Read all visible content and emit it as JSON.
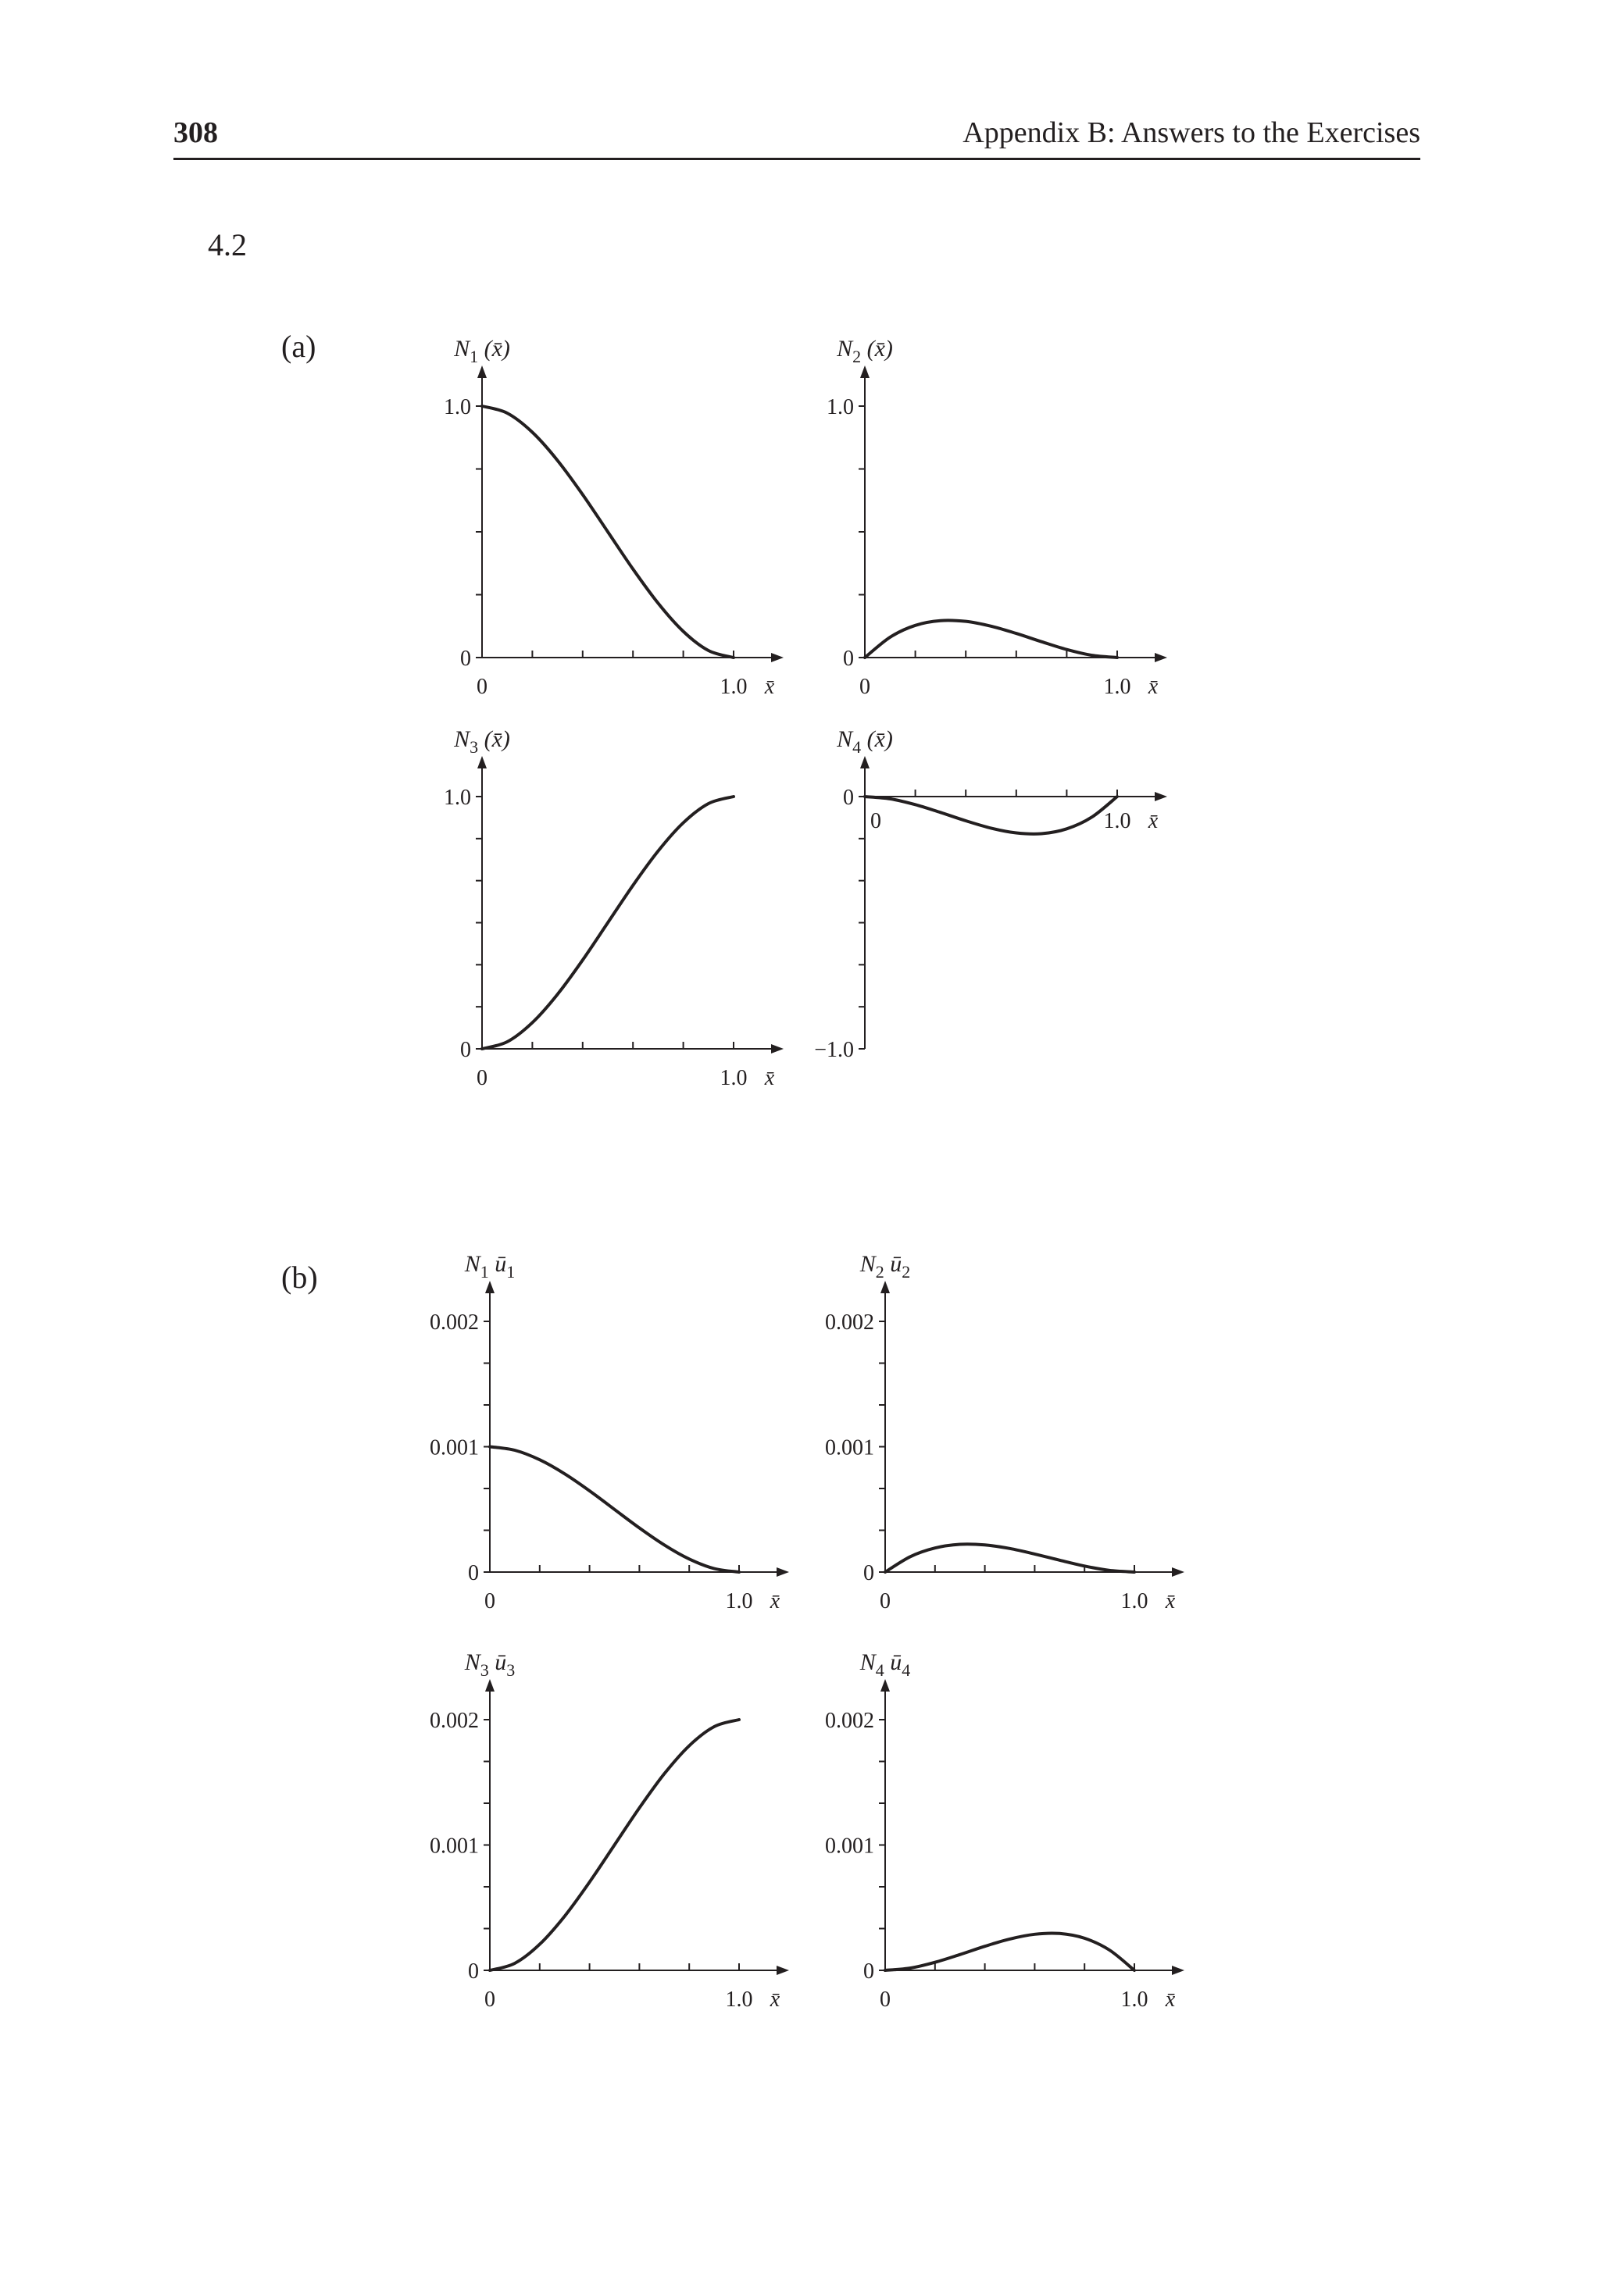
{
  "header": {
    "page_number": "308",
    "running_head": "Appendix B: Answers to the Exercises"
  },
  "exercise_number": "4.2",
  "parts": [
    {
      "label": "(a)"
    },
    {
      "label": "(b)"
    }
  ],
  "chart_data": [
    {
      "type": "line",
      "part": "(a)",
      "ylabel": "N1 (x̄)",
      "ylabel_main": "N",
      "ylabel_sub": "1",
      "ylabel_rest": " (x̄)",
      "xlabel": "x̄",
      "xlim": [
        0,
        1.0
      ],
      "ylim": [
        0,
        1.0
      ],
      "x_tick_labels": [
        "0",
        "1.0"
      ],
      "y_tick_labels": [
        "0",
        "1.0"
      ],
      "x": [
        0,
        0.1,
        0.2,
        0.3,
        0.4,
        0.5,
        0.6,
        0.7,
        0.8,
        0.9,
        1.0
      ],
      "y": [
        1.0,
        0.972,
        0.896,
        0.784,
        0.648,
        0.5,
        0.352,
        0.216,
        0.104,
        0.028,
        0.0
      ]
    },
    {
      "type": "line",
      "part": "(a)",
      "ylabel": "N2 (x̄)",
      "ylabel_main": "N",
      "ylabel_sub": "2",
      "ylabel_rest": " (x̄)",
      "xlabel": "x̄",
      "xlim": [
        0,
        1.0
      ],
      "ylim": [
        0,
        1.0
      ],
      "x_tick_labels": [
        "0",
        "1.0"
      ],
      "y_tick_labels": [
        "0",
        "1.0"
      ],
      "x": [
        0,
        0.1,
        0.2,
        0.3,
        0.4,
        0.5,
        0.6,
        0.7,
        0.8,
        0.9,
        1.0
      ],
      "y": [
        0.0,
        0.081,
        0.128,
        0.147,
        0.144,
        0.125,
        0.096,
        0.063,
        0.032,
        0.009,
        0.0
      ]
    },
    {
      "type": "line",
      "part": "(a)",
      "ylabel": "N3 (x̄)",
      "ylabel_main": "N",
      "ylabel_sub": "3",
      "ylabel_rest": " (x̄)",
      "xlabel": "x̄",
      "xlim": [
        0,
        1.0
      ],
      "ylim": [
        0,
        1.0
      ],
      "x_tick_labels": [
        "0",
        "1.0"
      ],
      "y_tick_labels": [
        "0",
        "1.0"
      ],
      "x": [
        0,
        0.1,
        0.2,
        0.3,
        0.4,
        0.5,
        0.6,
        0.7,
        0.8,
        0.9,
        1.0
      ],
      "y": [
        0.0,
        0.028,
        0.104,
        0.216,
        0.352,
        0.5,
        0.648,
        0.784,
        0.896,
        0.972,
        1.0
      ]
    },
    {
      "type": "line",
      "part": "(a)",
      "ylabel": "N4 (x̄)",
      "ylabel_main": "N",
      "ylabel_sub": "4",
      "ylabel_rest": " (x̄)",
      "xlabel": "x̄",
      "xlim": [
        0,
        1.0
      ],
      "ylim": [
        -1.0,
        0
      ],
      "x_tick_labels": [
        "0",
        "1.0"
      ],
      "y_tick_labels": [
        "−1.0",
        "0"
      ],
      "x": [
        0,
        0.1,
        0.2,
        0.3,
        0.4,
        0.5,
        0.6,
        0.7,
        0.8,
        0.9,
        1.0
      ],
      "y": [
        0.0,
        -0.009,
        -0.032,
        -0.063,
        -0.096,
        -0.125,
        -0.144,
        -0.147,
        -0.128,
        -0.081,
        0.0
      ]
    },
    {
      "type": "line",
      "part": "(b)",
      "ylabel": "N1 ū1",
      "ylabel_main": "N",
      "ylabel_sub": "1",
      "ylabel_rest": " ū",
      "ylabel_sub2": "1",
      "xlabel": "x̄",
      "xlim": [
        0,
        1.0
      ],
      "ylim": [
        0,
        0.002
      ],
      "x_tick_labels": [
        "0",
        "1.0"
      ],
      "y_tick_labels": [
        "0",
        "0.001",
        "0.002"
      ],
      "x": [
        0,
        0.1,
        0.2,
        0.3,
        0.4,
        0.5,
        0.6,
        0.7,
        0.8,
        0.9,
        1.0
      ],
      "y": [
        0.001,
        0.000972,
        0.000896,
        0.000784,
        0.000648,
        0.0005,
        0.000352,
        0.000216,
        0.000104,
        2.8e-05,
        0.0
      ]
    },
    {
      "type": "line",
      "part": "(b)",
      "ylabel": "N2 ū2",
      "ylabel_main": "N",
      "ylabel_sub": "2",
      "ylabel_rest": " ū",
      "ylabel_sub2": "2",
      "xlabel": "x̄",
      "xlim": [
        0,
        1.0
      ],
      "ylim": [
        0,
        0.002
      ],
      "x_tick_labels": [
        "0",
        "1.0"
      ],
      "y_tick_labels": [
        "0",
        "0.001",
        "0.002"
      ],
      "x": [
        0,
        0.1,
        0.2,
        0.3,
        0.4,
        0.5,
        0.6,
        0.7,
        0.8,
        0.9,
        1.0
      ],
      "y": [
        0.0,
        0.000122,
        0.000192,
        0.000221,
        0.000216,
        0.000188,
        0.000144,
        9.5e-05,
        4.8e-05,
        1.4e-05,
        0.0
      ]
    },
    {
      "type": "line",
      "part": "(b)",
      "ylabel": "N3 ū3",
      "ylabel_main": "N",
      "ylabel_sub": "3",
      "ylabel_rest": " ū",
      "ylabel_sub2": "3",
      "xlabel": "x̄",
      "xlim": [
        0,
        1.0
      ],
      "ylim": [
        0,
        0.002
      ],
      "x_tick_labels": [
        "0",
        "1.0"
      ],
      "y_tick_labels": [
        "0",
        "0.001",
        "0.002"
      ],
      "x": [
        0,
        0.1,
        0.2,
        0.3,
        0.4,
        0.5,
        0.6,
        0.7,
        0.8,
        0.9,
        1.0
      ],
      "y": [
        0.0,
        5.6e-05,
        0.000208,
        0.000432,
        0.000704,
        0.001,
        0.001296,
        0.001568,
        0.001792,
        0.001944,
        0.002
      ]
    },
    {
      "type": "line",
      "part": "(b)",
      "ylabel": "N4 ū4",
      "ylabel_main": "N",
      "ylabel_sub": "4",
      "ylabel_rest": " ū",
      "ylabel_sub2": "4",
      "xlabel": "x̄",
      "xlim": [
        0,
        1.0
      ],
      "ylim": [
        0,
        0.002
      ],
      "x_tick_labels": [
        "0",
        "1.0"
      ],
      "y_tick_labels": [
        "0",
        "0.001",
        "0.002"
      ],
      "x": [
        0,
        0.1,
        0.2,
        0.3,
        0.4,
        0.5,
        0.6,
        0.7,
        0.8,
        0.9,
        1.0
      ],
      "y": [
        0.0,
        1.8e-05,
        6.4e-05,
        0.000126,
        0.000192,
        0.00025,
        0.000288,
        0.000294,
        0.000256,
        0.000162,
        0.0
      ]
    }
  ]
}
